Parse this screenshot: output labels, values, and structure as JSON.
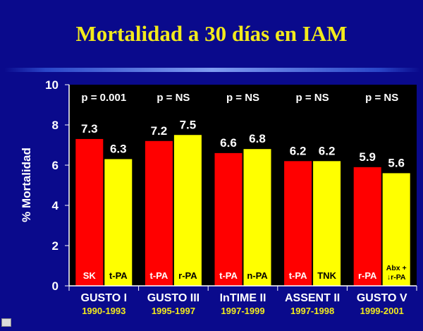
{
  "title": "Mortalidad a 30 días en IAM",
  "colors": {
    "background": "#0a0a8c",
    "plot": "#000000",
    "title": "#f2ea1c",
    "bar_red": "#ff0000",
    "bar_yellow": "#ffff00",
    "text": "#ffffff"
  },
  "chart_data": {
    "type": "bar",
    "ylabel": "% Mortalidad",
    "ylim": [
      0,
      10
    ],
    "yticks": [
      "0",
      "2",
      "4",
      "6",
      "8",
      "10"
    ],
    "grid": false,
    "groups": [
      {
        "name": "GUSTO I",
        "years": "1990-1993",
        "p": "p = 0.001",
        "bars": [
          {
            "label": "SK",
            "value": 7.3,
            "value_text": "7.3",
            "color": "red"
          },
          {
            "label": "t-PA",
            "value": 6.3,
            "value_text": "6.3",
            "color": "yellow"
          }
        ]
      },
      {
        "name": "GUSTO III",
        "years": "1995-1997",
        "p": "p = NS",
        "bars": [
          {
            "label": "t-PA",
            "value": 7.2,
            "value_text": "7.2",
            "color": "red"
          },
          {
            "label": "r-PA",
            "value": 7.5,
            "value_text": "7.5",
            "color": "yellow"
          }
        ]
      },
      {
        "name": "InTIME II",
        "years": "1997-1999",
        "p": "p = NS",
        "bars": [
          {
            "label": "t-PA",
            "value": 6.6,
            "value_text": "6.6",
            "color": "red"
          },
          {
            "label": "n-PA",
            "value": 6.8,
            "value_text": "6.8",
            "color": "yellow"
          }
        ]
      },
      {
        "name": "ASSENT II",
        "years": "1997-1998",
        "p": "p = NS",
        "bars": [
          {
            "label": "t-PA",
            "value": 6.2,
            "value_text": "6.2",
            "color": "red"
          },
          {
            "label": "TNK",
            "value": 6.2,
            "value_text": "6.2",
            "color": "yellow"
          }
        ]
      },
      {
        "name": "GUSTO V",
        "years": "1999-2001",
        "p": "p = NS",
        "bars": [
          {
            "label": "r-PA",
            "value": 5.9,
            "value_text": "5.9",
            "color": "red"
          },
          {
            "label": "Abx + ↓r-PA",
            "label_lines": [
              "Abx +",
              "↓r-PA"
            ],
            "value": 5.6,
            "value_text": "5.6",
            "color": "yellow"
          }
        ]
      }
    ]
  }
}
